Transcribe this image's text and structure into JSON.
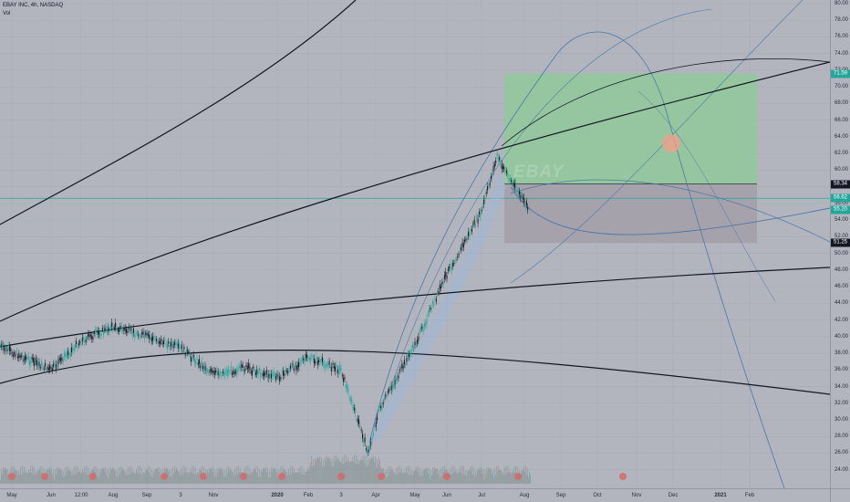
{
  "legend": {
    "symbol_line": "EBAY INC, 4h, NASDAQ",
    "volume_label": "Vol"
  },
  "watermark": "EBAY",
  "price_axis": {
    "ticks": [
      "80.00",
      "78.00",
      "76.00",
      "74.00",
      "72.00",
      "70.00",
      "68.00",
      "66.00",
      "64.00",
      "62.00",
      "60.00",
      "58.00",
      "56.00",
      "54.00",
      "52.00",
      "50.00",
      "48.00",
      "46.00",
      "44.00",
      "42.00",
      "40.00",
      "38.00",
      "36.00",
      "34.00",
      "32.00",
      "30.00",
      "28.00",
      "26.00",
      "24.00"
    ],
    "badges": [
      {
        "text": "71.59",
        "bg": "#26a69a",
        "fg": "#ffffff"
      },
      {
        "text": "58.34",
        "bg": "#131722",
        "fg": "#ffffff"
      },
      {
        "text": "56.62",
        "bg": "#26a69a",
        "fg": "#ffffff"
      },
      {
        "text": "55.20",
        "bg": "#26a69a",
        "fg": "#ffffff"
      },
      {
        "text": "51.25",
        "bg": "#131722",
        "fg": "#ffffff"
      }
    ]
  },
  "time_axis": {
    "ticks": [
      "May",
      "Jun",
      "12:00",
      "Aug",
      "Sep",
      "3",
      "Nov",
      "2020",
      "Feb",
      "3",
      "Apr",
      "May",
      "Jun",
      "Jul",
      "Aug",
      "Sep",
      "Oct",
      "Nov",
      "Dec",
      "2021",
      "Feb"
    ]
  },
  "colors": {
    "background": "#b2b5be",
    "candle_up": "#26a69a",
    "candle_down": "#131722",
    "profit_zone": "#8fc99a",
    "loss_zone": "#a39fa8",
    "trend_line": "#131722",
    "arc_line": "#4a78a8"
  },
  "chart_data": {
    "type": "candlestick",
    "symbol": "EBAY INC",
    "interval": "4h",
    "exchange": "NASDAQ",
    "ylim": [
      23,
      80.5
    ],
    "price_path": [
      {
        "t": "May",
        "v": 38.8
      },
      {
        "t": "Jun",
        "v": 36.0
      },
      {
        "t": "12:00",
        "v": 39.5
      },
      {
        "t": "Aug",
        "v": 41.2
      },
      {
        "t": "Sep",
        "v": 40.0
      },
      {
        "t": "3",
        "v": 38.6
      },
      {
        "t": "Nov",
        "v": 35.5
      },
      {
        "t": "Dec",
        "v": 36.2
      },
      {
        "t": "2020",
        "v": 35.1
      },
      {
        "t": "Feb",
        "v": 37.5
      },
      {
        "t": "Mar",
        "v": 36.0
      },
      {
        "t": "Mar-low",
        "v": 26.0
      },
      {
        "t": "Apr",
        "v": 31.0
      },
      {
        "t": "May",
        "v": 39.0
      },
      {
        "t": "Jun",
        "v": 47.5
      },
      {
        "t": "Jul",
        "v": 55.0
      },
      {
        "t": "Jul-high",
        "v": 61.6
      },
      {
        "t": "Aug",
        "v": 55.2
      }
    ],
    "long_position": {
      "take_profit": 71.59,
      "entry": 58.34,
      "stop_loss": 51.25
    },
    "horizontal_lines": [
      56.62
    ],
    "last_price": 55.2
  }
}
